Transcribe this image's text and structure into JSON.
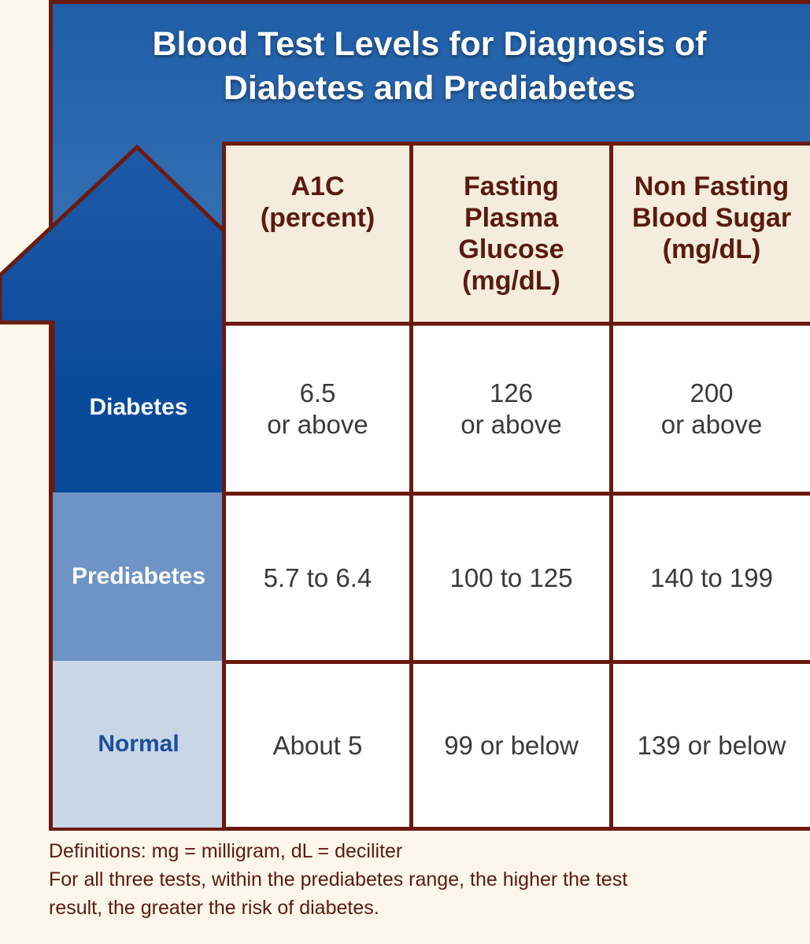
{
  "title": {
    "line1": "Blood Test Levels for Diagnosis of",
    "line2": "Diabetes and Prediabetes"
  },
  "columns": [
    {
      "lines": [
        "A1C",
        "(percent)"
      ]
    },
    {
      "lines": [
        "Fasting",
        "Plasma",
        "Glucose",
        "(mg/dL)"
      ]
    },
    {
      "lines": [
        "Non Fasting",
        "Blood Sugar",
        "(mg/dL)"
      ]
    }
  ],
  "rows": [
    {
      "label": "Diabetes",
      "cells": [
        [
          "6.5",
          "or above"
        ],
        [
          "126",
          "or above"
        ],
        [
          "200",
          "or above"
        ]
      ]
    },
    {
      "label": "Prediabetes",
      "cells": [
        [
          "5.7 to 6.4"
        ],
        [
          "100 to 125"
        ],
        [
          "140 to 199"
        ]
      ]
    },
    {
      "label": "Normal",
      "cells": [
        [
          "About 5"
        ],
        [
          "99 or below"
        ],
        [
          "139 or below"
        ]
      ]
    }
  ],
  "notes": {
    "definitions": "Definitions: mg = milligram, dL = deciliter",
    "line2": "For all three tests, within the prediabetes range, the higher the test",
    "line3": "result, the greater the risk of diabetes."
  },
  "colors": {
    "border": "#6b1a10",
    "diabetes": "#0a4a9a",
    "prediabetes": "#6e93c4",
    "normal": "#c8d6e8"
  }
}
